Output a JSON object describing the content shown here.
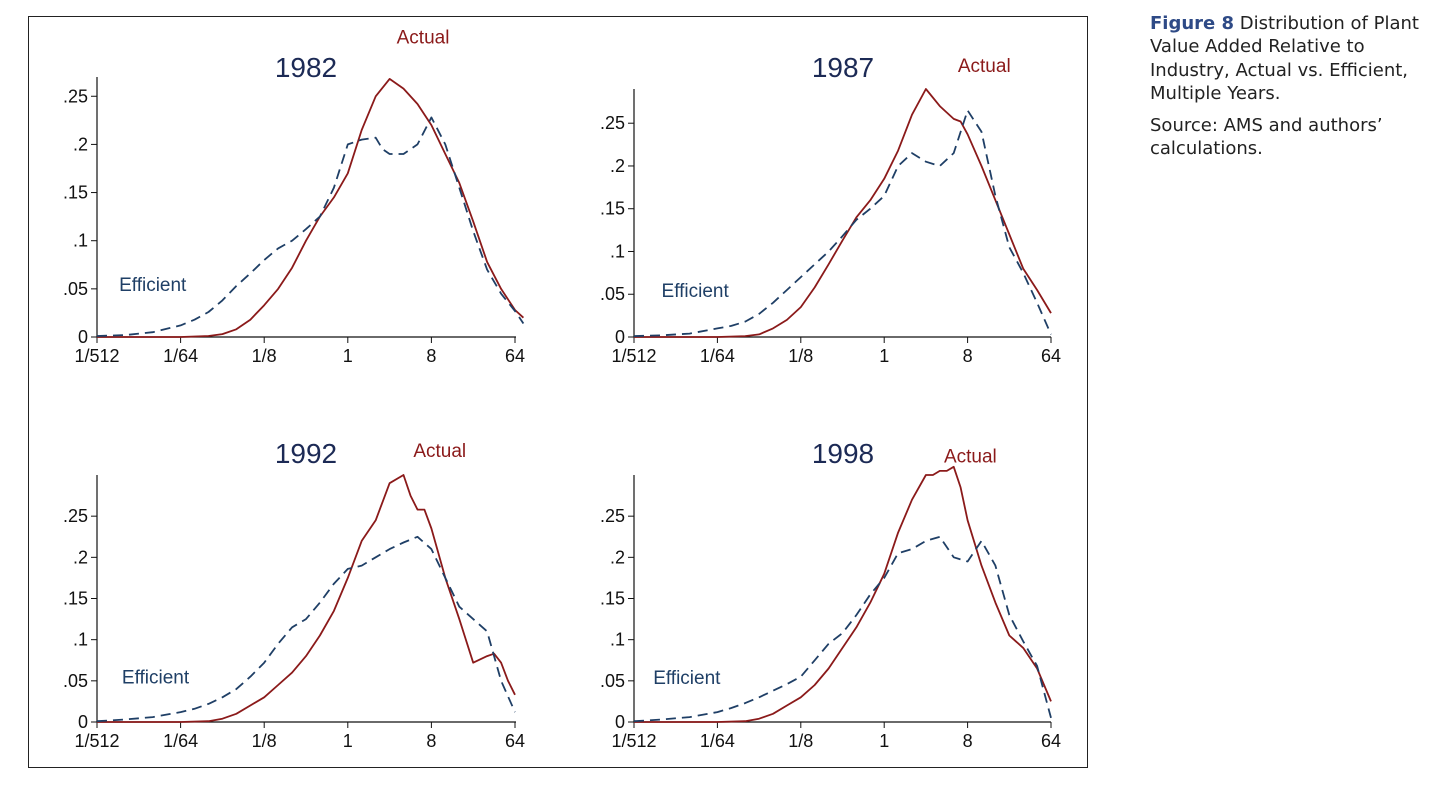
{
  "caption": {
    "figure_label": "Figure 8",
    "title": "Distribution of Plant Value Added Relative to Industry, Actual vs. Efficient, Multiple Years.",
    "source": "Source: AMS and authors’ calculations."
  },
  "colors": {
    "actual": "#8b1a1a",
    "efficient": "#1f3f66",
    "panel_title": "#1c2a55",
    "axis": "#111111",
    "figure_label": "#2e4a86"
  },
  "chart_data": [
    {
      "type": "line",
      "title": "1982",
      "x_scale": "log2",
      "x_ticks": [
        -9,
        -6,
        -3,
        0,
        3,
        6
      ],
      "x_tick_labels": [
        "1/512",
        "1/64",
        "1/8",
        "1",
        "8",
        "64"
      ],
      "y_ticks": [
        0,
        0.05,
        0.1,
        0.15,
        0.2,
        0.25
      ],
      "y_tick_labels": [
        "0",
        ".05",
        ".1",
        ".15",
        ".2",
        ".25"
      ],
      "xlim": [
        -9,
        6.2
      ],
      "ylim": [
        0,
        0.27
      ],
      "series": [
        {
          "name": "Actual",
          "x": [
            -9,
            -6,
            -5,
            -4.5,
            -4,
            -3.5,
            -3,
            -2.5,
            -2,
            -1.5,
            -1,
            -0.5,
            0,
            0.5,
            1,
            1.5,
            2,
            2.5,
            3,
            3.5,
            4,
            4.5,
            5,
            5.5,
            6,
            6.3
          ],
          "y": [
            0,
            0,
            0.001,
            0.003,
            0.008,
            0.018,
            0.033,
            0.05,
            0.072,
            0.1,
            0.125,
            0.145,
            0.17,
            0.215,
            0.25,
            0.268,
            0.258,
            0.242,
            0.22,
            0.19,
            0.16,
            0.12,
            0.078,
            0.05,
            0.028,
            0.02
          ]
        },
        {
          "name": "Efficient",
          "x": [
            -9,
            -8,
            -7,
            -6,
            -5.5,
            -5,
            -4.5,
            -4,
            -3.5,
            -3,
            -2.5,
            -2,
            -1.5,
            -1,
            -0.5,
            0,
            0.5,
            1,
            1.25,
            1.5,
            2,
            2.5,
            3,
            3.5,
            4,
            4.5,
            5,
            5.5,
            6,
            6.3
          ],
          "y": [
            0.001,
            0.002,
            0.005,
            0.012,
            0.018,
            0.026,
            0.038,
            0.053,
            0.066,
            0.08,
            0.092,
            0.1,
            0.112,
            0.125,
            0.155,
            0.2,
            0.205,
            0.207,
            0.195,
            0.19,
            0.19,
            0.2,
            0.228,
            0.2,
            0.155,
            0.11,
            0.07,
            0.045,
            0.027,
            0.014
          ]
        }
      ],
      "annotations": [
        {
          "text": "Actual",
          "series": "Actual",
          "x": 2.7,
          "y": 0.305
        },
        {
          "text": "Efficient",
          "series": "Efficient",
          "x": -7.0,
          "y": 0.048
        }
      ]
    },
    {
      "type": "line",
      "title": "1987",
      "x_scale": "log2",
      "x_ticks": [
        -9,
        -6,
        -3,
        0,
        3,
        6
      ],
      "x_tick_labels": [
        "1/512",
        "1/64",
        "1/8",
        "1",
        "8",
        "64"
      ],
      "y_ticks": [
        0,
        0.05,
        0.1,
        0.15,
        0.2,
        0.25
      ],
      "y_tick_labels": [
        "0",
        ".05",
        ".1",
        ".15",
        ".2",
        ".25"
      ],
      "xlim": [
        -9,
        6
      ],
      "ylim": [
        0,
        0.29
      ],
      "series": [
        {
          "name": "Actual",
          "x": [
            -9,
            -6,
            -5,
            -4.5,
            -4,
            -3.5,
            -3,
            -2.5,
            -2,
            -1.5,
            -1,
            -0.5,
            0,
            0.5,
            1,
            1.5,
            2,
            2.5,
            2.75,
            3,
            3.5,
            4,
            4.5,
            5,
            5.5,
            6
          ],
          "y": [
            0,
            0,
            0.001,
            0.003,
            0.01,
            0.02,
            0.035,
            0.058,
            0.085,
            0.113,
            0.14,
            0.16,
            0.185,
            0.218,
            0.26,
            0.29,
            0.27,
            0.255,
            0.252,
            0.237,
            0.2,
            0.16,
            0.12,
            0.08,
            0.055,
            0.028
          ]
        },
        {
          "name": "Efficient",
          "x": [
            -9,
            -8,
            -7,
            -6,
            -5.5,
            -5,
            -4.5,
            -4,
            -3.5,
            -3,
            -2.5,
            -2,
            -1.5,
            -1,
            -0.5,
            0,
            0.5,
            1,
            1.5,
            2,
            2.5,
            3,
            3.5,
            4,
            4.5,
            5,
            5.5,
            6
          ],
          "y": [
            0.001,
            0.002,
            0.004,
            0.01,
            0.013,
            0.018,
            0.027,
            0.04,
            0.055,
            0.07,
            0.085,
            0.1,
            0.118,
            0.137,
            0.15,
            0.165,
            0.2,
            0.215,
            0.205,
            0.2,
            0.215,
            0.265,
            0.24,
            0.165,
            0.105,
            0.075,
            0.04,
            0.003
          ]
        }
      ],
      "annotations": [
        {
          "text": "Actual",
          "series": "Actual",
          "x": 3.6,
          "y": 0.31
        },
        {
          "text": "Efficient",
          "series": "Efficient",
          "x": -6.8,
          "y": 0.047
        }
      ]
    },
    {
      "type": "line",
      "title": "1992",
      "x_scale": "log2",
      "x_ticks": [
        -9,
        -6,
        -3,
        0,
        3,
        6
      ],
      "x_tick_labels": [
        "1/512",
        "1/64",
        "1/8",
        "1",
        "8",
        "64"
      ],
      "y_ticks": [
        0,
        0.05,
        0.1,
        0.15,
        0.2,
        0.25
      ],
      "y_tick_labels": [
        "0",
        ".05",
        ".1",
        ".15",
        ".2",
        ".25"
      ],
      "xlim": [
        -9,
        6
      ],
      "ylim": [
        0,
        0.3
      ],
      "series": [
        {
          "name": "Actual",
          "x": [
            -9,
            -6,
            -5,
            -4.5,
            -4,
            -3.5,
            -3,
            -2.5,
            -2,
            -1.5,
            -1,
            -0.5,
            0,
            0.5,
            1,
            1.5,
            2,
            2.25,
            2.5,
            2.75,
            3,
            3.25,
            3.5,
            4,
            4.5,
            5,
            5.25,
            5.5,
            5.75,
            6
          ],
          "y": [
            0,
            0,
            0.001,
            0.004,
            0.01,
            0.02,
            0.03,
            0.045,
            0.06,
            0.08,
            0.105,
            0.135,
            0.175,
            0.22,
            0.245,
            0.29,
            0.3,
            0.275,
            0.258,
            0.258,
            0.235,
            0.205,
            0.175,
            0.125,
            0.072,
            0.08,
            0.083,
            0.072,
            0.05,
            0.033
          ]
        },
        {
          "name": "Efficient",
          "x": [
            -9,
            -8,
            -7,
            -6,
            -5.5,
            -5,
            -4.5,
            -4,
            -3.5,
            -3,
            -2.5,
            -2,
            -1.5,
            -1,
            -0.5,
            0,
            0.5,
            1,
            1.5,
            2,
            2.5,
            3,
            3.5,
            4,
            4.5,
            5,
            5.5,
            6
          ],
          "y": [
            0.001,
            0.003,
            0.006,
            0.012,
            0.016,
            0.022,
            0.03,
            0.04,
            0.055,
            0.072,
            0.095,
            0.115,
            0.125,
            0.145,
            0.168,
            0.186,
            0.19,
            0.2,
            0.21,
            0.218,
            0.225,
            0.21,
            0.175,
            0.14,
            0.125,
            0.11,
            0.05,
            0.012
          ]
        }
      ],
      "annotations": [
        {
          "text": "Actual",
          "series": "Actual",
          "x": 3.3,
          "y": 0.322
        },
        {
          "text": "Efficient",
          "series": "Efficient",
          "x": -6.9,
          "y": 0.047
        }
      ]
    },
    {
      "type": "line",
      "title": "1998",
      "x_scale": "log2",
      "x_ticks": [
        -9,
        -6,
        -3,
        0,
        3,
        6
      ],
      "x_tick_labels": [
        "1/512",
        "1/64",
        "1/8",
        "1",
        "8",
        "64"
      ],
      "y_ticks": [
        0,
        0.05,
        0.1,
        0.15,
        0.2,
        0.25
      ],
      "y_tick_labels": [
        "0",
        ".05",
        ".1",
        ".15",
        ".2",
        ".25"
      ],
      "xlim": [
        -9,
        6
      ],
      "ylim": [
        0,
        0.3
      ],
      "series": [
        {
          "name": "Actual",
          "x": [
            -9,
            -6,
            -5,
            -4.5,
            -4,
            -3.5,
            -3,
            -2.5,
            -2,
            -1.5,
            -1,
            -0.5,
            0,
            0.5,
            1,
            1.5,
            1.75,
            2,
            2.25,
            2.5,
            2.75,
            3,
            3.5,
            4,
            4.5,
            5,
            5.5,
            6
          ],
          "y": [
            0,
            0,
            0.001,
            0.004,
            0.01,
            0.02,
            0.03,
            0.045,
            0.065,
            0.09,
            0.115,
            0.145,
            0.18,
            0.23,
            0.27,
            0.3,
            0.3,
            0.305,
            0.305,
            0.31,
            0.285,
            0.245,
            0.19,
            0.145,
            0.105,
            0.09,
            0.065,
            0.025
          ]
        },
        {
          "name": "Efficient",
          "x": [
            -9,
            -8,
            -7,
            -6,
            -5.5,
            -5,
            -4.5,
            -4,
            -3.5,
            -3,
            -2.5,
            -2,
            -1.5,
            -1,
            -0.5,
            0,
            0.5,
            1,
            1.5,
            2,
            2.5,
            3,
            3.5,
            4,
            4.5,
            5,
            5.5,
            6
          ],
          "y": [
            0.001,
            0.003,
            0.006,
            0.012,
            0.017,
            0.023,
            0.03,
            0.038,
            0.046,
            0.055,
            0.075,
            0.095,
            0.108,
            0.13,
            0.155,
            0.175,
            0.205,
            0.21,
            0.22,
            0.225,
            0.2,
            0.195,
            0.22,
            0.19,
            0.13,
            0.098,
            0.068,
            0.005
          ]
        }
      ],
      "annotations": [
        {
          "text": "Actual",
          "series": "Actual",
          "x": 3.1,
          "y": 0.315
        },
        {
          "text": "Efficient",
          "series": "Efficient",
          "x": -7.1,
          "y": 0.046
        }
      ]
    }
  ]
}
